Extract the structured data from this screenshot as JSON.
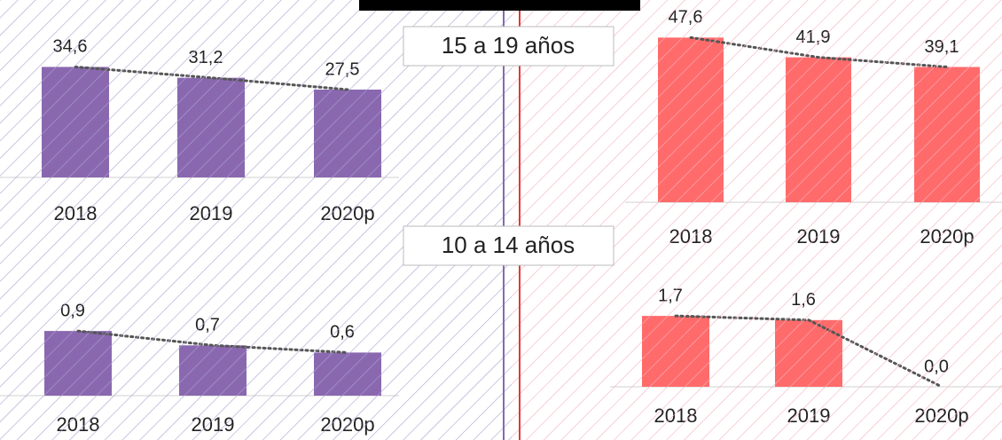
{
  "labels": [
    "15 a 19 años",
    "10 a 14 años"
  ],
  "chart_data": [
    {
      "type": "bar",
      "categories": [
        "2018",
        "2019",
        "2020p"
      ],
      "values": [
        34.6,
        31.2,
        27.5
      ],
      "value_labels": [
        "34,6",
        "31,2",
        "27,5"
      ],
      "color": "#8a68b0",
      "line_color": "#555555",
      "ylim": [
        0,
        40
      ]
    },
    {
      "type": "bar",
      "categories": [
        "2018",
        "2019",
        "2020p"
      ],
      "values": [
        47.6,
        41.9,
        39.1
      ],
      "value_labels": [
        "47,6",
        "41,9",
        "39,1"
      ],
      "color": "#ff6b6b",
      "line_color": "#555555",
      "ylim": [
        0,
        50
      ]
    },
    {
      "type": "bar",
      "categories": [
        "2018",
        "2019",
        "2020p"
      ],
      "values": [
        0.9,
        0.7,
        0.6
      ],
      "value_labels": [
        "0,9",
        "0,7",
        "0,6"
      ],
      "color": "#8a68b0",
      "line_color": "#555555",
      "ylim": [
        0,
        1
      ]
    },
    {
      "type": "bar",
      "categories": [
        "2018",
        "2019",
        "2020p"
      ],
      "values": [
        1.7,
        1.6,
        0.0
      ],
      "value_labels": [
        "1,7",
        "1,6",
        "0,0"
      ],
      "color": "#ff6b6b",
      "line_color": "#555555",
      "ylim": [
        0,
        2
      ]
    }
  ]
}
